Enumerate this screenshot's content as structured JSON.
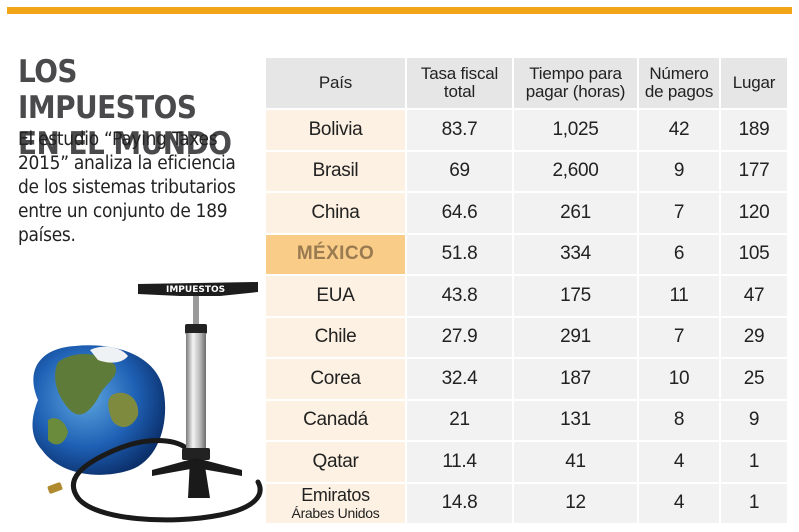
{
  "title": "LOS IMPUESTOS\nEN EL MUNDO",
  "description": "El estudio “Paying Taxes 2015” analiza la eficiencia de los sistemas tributarios entre un conjunto de 189 países.",
  "pump_label": "IMPUESTOS",
  "colors": {
    "accent": "#f2a516",
    "highlight": "#f9cc88",
    "country_bg": "#fcf1e2",
    "header_bg": "#e6e6e7",
    "cell_bg": "#f2f2f2"
  },
  "table": {
    "headers": [
      "País",
      "Tasa fiscal\ntotal",
      "Tiempo para\npagar (horas)",
      "Número\nde pagos",
      "Lugar"
    ],
    "rows": [
      {
        "country": "Bolivia",
        "tax": "83.7",
        "time": "1,025",
        "payments": "42",
        "rank": "189"
      },
      {
        "country": "Brasil",
        "tax": "69",
        "time": "2,600",
        "payments": "9",
        "rank": "177"
      },
      {
        "country": "China",
        "tax": "64.6",
        "time": "261",
        "payments": "7",
        "rank": "120"
      },
      {
        "country": "MÉXICO",
        "tax": "51.8",
        "time": "334",
        "payments": "6",
        "rank": "105",
        "highlight": true
      },
      {
        "country": "EUA",
        "tax": "43.8",
        "time": "175",
        "payments": "11",
        "rank": "47"
      },
      {
        "country": "Chile",
        "tax": "27.9",
        "time": "291",
        "payments": "7",
        "rank": "29"
      },
      {
        "country": "Corea",
        "tax": "32.4",
        "time": "187",
        "payments": "10",
        "rank": "25"
      },
      {
        "country": "Canadá",
        "tax": "21",
        "time": "131",
        "payments": "8",
        "rank": "9"
      },
      {
        "country": "Qatar",
        "tax": "11.4",
        "time": "41",
        "payments": "4",
        "rank": "1"
      },
      {
        "country": "Emiratos",
        "country_line2": "Árabes Unidos",
        "tax": "14.8",
        "time": "12",
        "payments": "4",
        "rank": "1"
      }
    ]
  },
  "chart_data": {
    "type": "table",
    "title": "LOS IMPUESTOS EN EL MUNDO",
    "columns": [
      "País",
      "Tasa fiscal total",
      "Tiempo para pagar (horas)",
      "Número de pagos",
      "Lugar"
    ],
    "rows": [
      [
        "Bolivia",
        83.7,
        1025,
        42,
        189
      ],
      [
        "Brasil",
        69,
        2600,
        9,
        177
      ],
      [
        "China",
        64.6,
        261,
        7,
        120
      ],
      [
        "MÉXICO",
        51.8,
        334,
        6,
        105
      ],
      [
        "EUA",
        43.8,
        175,
        11,
        47
      ],
      [
        "Chile",
        27.9,
        291,
        7,
        29
      ],
      [
        "Corea",
        32.4,
        187,
        10,
        25
      ],
      [
        "Canadá",
        21,
        131,
        8,
        9
      ],
      [
        "Qatar",
        11.4,
        41,
        4,
        1
      ],
      [
        "Emiratos Árabes Unidos",
        14.8,
        12,
        4,
        1
      ]
    ]
  }
}
